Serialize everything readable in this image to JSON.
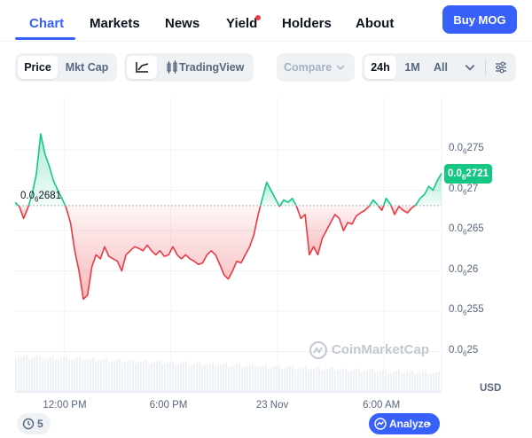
{
  "tabs": [
    {
      "label": "Chart",
      "active": true
    },
    {
      "label": "Markets"
    },
    {
      "label": "News"
    },
    {
      "label": "Yield",
      "dot": true
    },
    {
      "label": "Holders"
    },
    {
      "label": "About"
    }
  ],
  "buy_button": "Buy MOG",
  "toolbar": {
    "price_label": "Price",
    "mktcap_label": "Mkt Cap",
    "line_icon": "line-chart-icon",
    "tradingview_icon": "tradingview-icon",
    "tradingview_label": "TradingView",
    "compare_label": "Compare",
    "ranges": [
      "24h",
      "1M",
      "All"
    ],
    "selected_range": "24h",
    "settings_icon": "sliders-icon"
  },
  "chart_data": {
    "type": "line",
    "y_ticks": [
      {
        "prefix": "0.0",
        "sub": "6",
        "suffix": "275",
        "value": 2.75e-07
      },
      {
        "prefix": "0.0",
        "sub": "6",
        "suffix": "27",
        "value": 2.7e-07
      },
      {
        "prefix": "0.0",
        "sub": "6",
        "suffix": "265",
        "value": 2.65e-07
      },
      {
        "prefix": "0.0",
        "sub": "6",
        "suffix": "26",
        "value": 2.6e-07
      },
      {
        "prefix": "0.0",
        "sub": "6",
        "suffix": "255",
        "value": 2.55e-07
      },
      {
        "prefix": "0.0",
        "sub": "6",
        "suffix": "25",
        "value": 2.5e-07
      }
    ],
    "ylim": [
      2.45e-07,
      2.815e-07
    ],
    "x_ticks": [
      {
        "label": "12:00 PM",
        "x": 0.115
      },
      {
        "label": "6:00 PM",
        "x": 0.365
      },
      {
        "label": "23 Nov",
        "x": 0.615
      },
      {
        "label": "6:00 AM",
        "x": 0.865
      }
    ],
    "baseline": {
      "value": 2.681e-07,
      "prefix": "0.0",
      "sub": "6",
      "suffix": "2681"
    },
    "current": {
      "value": 2.721e-07,
      "prefix": "0.0",
      "sub": "6",
      "suffix": "2721"
    },
    "ylabel": "USD",
    "points": [
      [
        0.0,
        2.685e-07
      ],
      [
        0.01,
        2.68e-07
      ],
      [
        0.02,
        2.665e-07
      ],
      [
        0.03,
        2.678e-07
      ],
      [
        0.04,
        2.695e-07
      ],
      [
        0.05,
        2.72e-07
      ],
      [
        0.06,
        2.77e-07
      ],
      [
        0.07,
        2.745e-07
      ],
      [
        0.08,
        2.73e-07
      ],
      [
        0.09,
        2.712e-07
      ],
      [
        0.1,
        2.7e-07
      ],
      [
        0.11,
        2.69e-07
      ],
      [
        0.12,
        2.678e-07
      ],
      [
        0.13,
        2.66e-07
      ],
      [
        0.14,
        2.625e-07
      ],
      [
        0.15,
        2.6e-07
      ],
      [
        0.16,
        2.565e-07
      ],
      [
        0.17,
        2.57e-07
      ],
      [
        0.18,
        2.605e-07
      ],
      [
        0.19,
        2.62e-07
      ],
      [
        0.2,
        2.615e-07
      ],
      [
        0.21,
        2.63e-07
      ],
      [
        0.22,
        2.618e-07
      ],
      [
        0.23,
        2.615e-07
      ],
      [
        0.24,
        2.612e-07
      ],
      [
        0.25,
        2.6e-07
      ],
      [
        0.26,
        2.62e-07
      ],
      [
        0.27,
        2.625e-07
      ],
      [
        0.28,
        2.63e-07
      ],
      [
        0.29,
        2.628e-07
      ],
      [
        0.3,
        2.625e-07
      ],
      [
        0.31,
        2.632e-07
      ],
      [
        0.32,
        2.625e-07
      ],
      [
        0.33,
        2.62e-07
      ],
      [
        0.34,
        2.625e-07
      ],
      [
        0.35,
        2.618e-07
      ],
      [
        0.36,
        2.62e-07
      ],
      [
        0.37,
        2.63e-07
      ],
      [
        0.38,
        2.62e-07
      ],
      [
        0.39,
        2.615e-07
      ],
      [
        0.4,
        2.62e-07
      ],
      [
        0.41,
        2.615e-07
      ],
      [
        0.42,
        2.612e-07
      ],
      [
        0.43,
        2.608e-07
      ],
      [
        0.44,
        2.61e-07
      ],
      [
        0.45,
        2.62e-07
      ],
      [
        0.46,
        2.625e-07
      ],
      [
        0.47,
        2.62e-07
      ],
      [
        0.48,
        2.608e-07
      ],
      [
        0.49,
        2.595e-07
      ],
      [
        0.5,
        2.59e-07
      ],
      [
        0.51,
        2.6e-07
      ],
      [
        0.52,
        2.612e-07
      ],
      [
        0.53,
        2.61e-07
      ],
      [
        0.54,
        2.62e-07
      ],
      [
        0.55,
        2.63e-07
      ],
      [
        0.56,
        2.645e-07
      ],
      [
        0.57,
        2.67e-07
      ],
      [
        0.58,
        2.69e-07
      ],
      [
        0.59,
        2.71e-07
      ],
      [
        0.6,
        2.7e-07
      ],
      [
        0.61,
        2.69e-07
      ],
      [
        0.62,
        2.68e-07
      ],
      [
        0.63,
        2.688e-07
      ],
      [
        0.64,
        2.685e-07
      ],
      [
        0.65,
        2.69e-07
      ],
      [
        0.66,
        2.68e-07
      ],
      [
        0.67,
        2.665e-07
      ],
      [
        0.68,
        2.67e-07
      ],
      [
        0.69,
        2.62e-07
      ],
      [
        0.7,
        2.63e-07
      ],
      [
        0.71,
        2.62e-07
      ],
      [
        0.72,
        2.64e-07
      ],
      [
        0.73,
        2.65e-07
      ],
      [
        0.74,
        2.66e-07
      ],
      [
        0.75,
        2.67e-07
      ],
      [
        0.76,
        2.665e-07
      ],
      [
        0.77,
        2.65e-07
      ],
      [
        0.78,
        2.66e-07
      ],
      [
        0.79,
        2.658e-07
      ],
      [
        0.8,
        2.668e-07
      ],
      [
        0.81,
        2.672e-07
      ],
      [
        0.82,
        2.675e-07
      ],
      [
        0.83,
        2.68e-07
      ],
      [
        0.84,
        2.688e-07
      ],
      [
        0.85,
        2.682e-07
      ],
      [
        0.86,
        2.675e-07
      ],
      [
        0.87,
        2.69e-07
      ],
      [
        0.88,
        2.683e-07
      ],
      [
        0.89,
        2.67e-07
      ],
      [
        0.9,
        2.68e-07
      ],
      [
        0.91,
        2.675e-07
      ],
      [
        0.92,
        2.672e-07
      ],
      [
        0.93,
        2.678e-07
      ],
      [
        0.94,
        2.682e-07
      ],
      [
        0.95,
        2.69e-07
      ],
      [
        0.96,
        2.695e-07
      ],
      [
        0.97,
        2.705e-07
      ],
      [
        0.98,
        2.7e-07
      ],
      [
        0.99,
        2.712e-07
      ],
      [
        1.0,
        2.721e-07
      ]
    ]
  },
  "watermark": "CoinMarketCap",
  "history_count": "5",
  "analyze_label": "Analyze"
}
